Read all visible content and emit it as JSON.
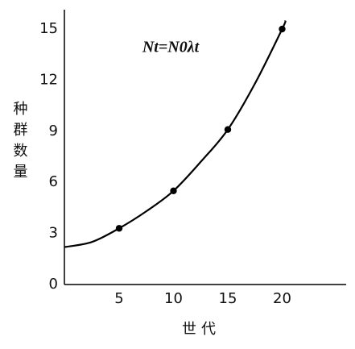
{
  "chart_data": {
    "type": "line",
    "annotation": "Nt=N0λt",
    "x_label": "世代",
    "y_label": "种群数量",
    "xlim": [
      0,
      26
    ],
    "ylim": [
      0,
      16.1
    ],
    "xticks": [
      5,
      10,
      15,
      20
    ],
    "yticks": [
      0,
      3,
      6,
      9,
      12,
      15
    ],
    "grid": false,
    "series": [
      {
        "color": "#000000",
        "style": "line",
        "x": [
          0,
          2.5,
          5,
          7.5,
          10,
          12.5,
          15,
          17.5,
          20,
          20.3
        ],
        "values": [
          2.2,
          2.5,
          3.3,
          4.3,
          5.5,
          7.2,
          9.1,
          11.8,
          15.0,
          15.5
        ]
      },
      {
        "color": "#000000",
        "style": "markers",
        "x": [
          5,
          10,
          15,
          20
        ],
        "values": [
          3.3,
          5.5,
          9.1,
          15.0
        ]
      }
    ]
  }
}
